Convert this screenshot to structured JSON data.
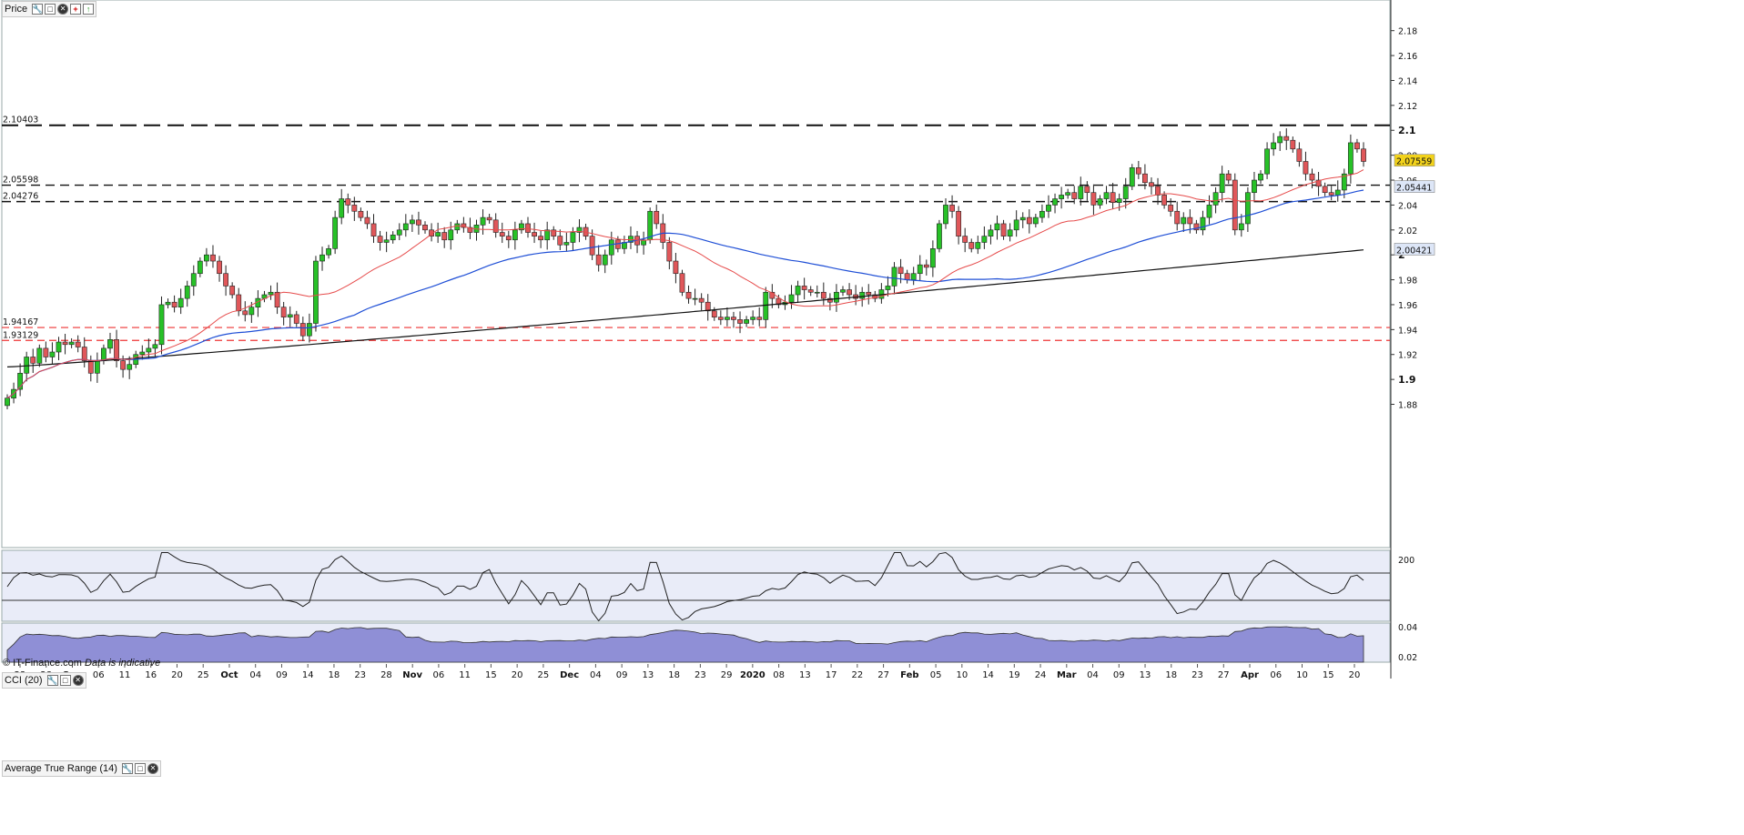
{
  "panels": {
    "price": {
      "title": "Price",
      "wrench_icon": "wrench-icon",
      "window_icon": "window-icon",
      "close_icon": "close-icon"
    },
    "cci": {
      "title": "CCI (20)"
    },
    "atr": {
      "title": "Average True Range (14)"
    }
  },
  "watermark": {
    "source": "© IT-Finance.com",
    "note": "Data is indicative"
  },
  "colors": {
    "up": "#27c127",
    "down": "#e0575a",
    "ma_short": "#e64b4b",
    "ma_medium": "#1f4fd6",
    "ma_long": "#111111",
    "last_price_bg": "#f2d21b",
    "ma_badge_bg": "#dde6f7",
    "cci_band_fill": "#a67b86",
    "cci_low_fill": "#8ec8a8",
    "atr_fill": "#8f8fd6",
    "panel_bg": "#e9ecf8"
  },
  "chart_data": {
    "type": "candlestick",
    "price_axis": {
      "ylim": [
        1.765,
        2.19
      ],
      "ticks": [
        "1.88",
        "1.9",
        "1.92",
        "1.94",
        "1.96",
        "1.98",
        "2",
        "2.02",
        "2.04",
        "2.06",
        "2.08",
        "2.1",
        "2.12",
        "2.14",
        "2.16",
        "2.18"
      ]
    },
    "x_tick_labels": [
      "23",
      "28",
      "Sep",
      "06",
      "11",
      "16",
      "20",
      "25",
      "Oct",
      "04",
      "09",
      "14",
      "18",
      "23",
      "28",
      "Nov",
      "06",
      "11",
      "15",
      "20",
      "25",
      "Dec",
      "04",
      "09",
      "13",
      "18",
      "23",
      "29",
      "2020",
      "08",
      "13",
      "17",
      "22",
      "27",
      "Feb",
      "05",
      "10",
      "14",
      "19",
      "24",
      "Mar",
      "04",
      "09",
      "13",
      "18",
      "23",
      "27",
      "Apr",
      "06",
      "10",
      "15",
      "20"
    ],
    "horizontal_levels": [
      {
        "label": "2.10403",
        "value": 2.10403,
        "style": "black-long-dash"
      },
      {
        "label": "2.05598",
        "value": 2.05598,
        "style": "black-dash"
      },
      {
        "label": "2.04276",
        "value": 2.04276,
        "style": "black-dash"
      },
      {
        "label": "1.94167",
        "value": 1.94167,
        "style": "red-dash"
      },
      {
        "label": "1.93129",
        "value": 1.93129,
        "style": "red-dash"
      }
    ],
    "last_price": "2.07559",
    "ma_medium_last": "2.05441",
    "ma_long_last": "2.00421",
    "closes": [
      1.885,
      1.892,
      1.905,
      1.918,
      1.913,
      1.925,
      1.918,
      1.922,
      1.93,
      1.928,
      1.93,
      1.926,
      1.915,
      1.905,
      1.915,
      1.925,
      1.932,
      1.915,
      1.908,
      1.912,
      1.92,
      1.922,
      1.925,
      1.928,
      1.96,
      1.962,
      1.958,
      1.965,
      1.975,
      1.985,
      1.995,
      2.0,
      1.995,
      1.985,
      1.975,
      1.968,
      1.955,
      1.952,
      1.958,
      1.965,
      1.968,
      1.97,
      1.958,
      1.95,
      1.952,
      1.945,
      1.935,
      1.945,
      1.995,
      2.0,
      2.005,
      2.03,
      2.045,
      2.04,
      2.035,
      2.03,
      2.025,
      2.015,
      2.01,
      2.012,
      2.016,
      2.02,
      2.025,
      2.028,
      2.024,
      2.02,
      2.015,
      2.018,
      2.012,
      2.02,
      2.025,
      2.022,
      2.018,
      2.024,
      2.03,
      2.028,
      2.018,
      2.015,
      2.012,
      2.02,
      2.025,
      2.018,
      2.015,
      2.012,
      2.02,
      2.015,
      2.008,
      2.01,
      2.018,
      2.022,
      2.015,
      2.0,
      1.992,
      2.0,
      2.012,
      2.005,
      2.01,
      2.015,
      2.008,
      2.012,
      2.035,
      2.025,
      2.01,
      1.995,
      1.985,
      1.97,
      1.965,
      1.965,
      1.962,
      1.955,
      1.95,
      1.948,
      1.95,
      1.948,
      1.945,
      1.948,
      1.95,
      1.948,
      1.97,
      1.965,
      1.96,
      1.962,
      1.968,
      1.975,
      1.972,
      1.97,
      1.97,
      1.965,
      1.962,
      1.97,
      1.972,
      1.968,
      1.965,
      1.97,
      1.968,
      1.965,
      1.972,
      1.975,
      1.99,
      1.985,
      1.98,
      1.985,
      1.992,
      1.99,
      2.005,
      2.025,
      2.04,
      2.035,
      2.015,
      2.01,
      2.005,
      2.01,
      2.015,
      2.02,
      2.025,
      2.015,
      2.02,
      2.028,
      2.03,
      2.025,
      2.03,
      2.035,
      2.04,
      2.045,
      2.048,
      2.05,
      2.045,
      2.055,
      2.05,
      2.04,
      2.045,
      2.05,
      2.042,
      2.045,
      2.055,
      2.07,
      2.065,
      2.058,
      2.055,
      2.048,
      2.04,
      2.035,
      2.025,
      2.03,
      2.025,
      2.02,
      2.03,
      2.04,
      2.05,
      2.065,
      2.06,
      2.02,
      2.025,
      2.05,
      2.06,
      2.065,
      2.085,
      2.09,
      2.095,
      2.092,
      2.085,
      2.075,
      2.065,
      2.06,
      2.055,
      2.05,
      2.048,
      2.052,
      2.065,
      2.09,
      2.085,
      2.075
    ]
  }
}
